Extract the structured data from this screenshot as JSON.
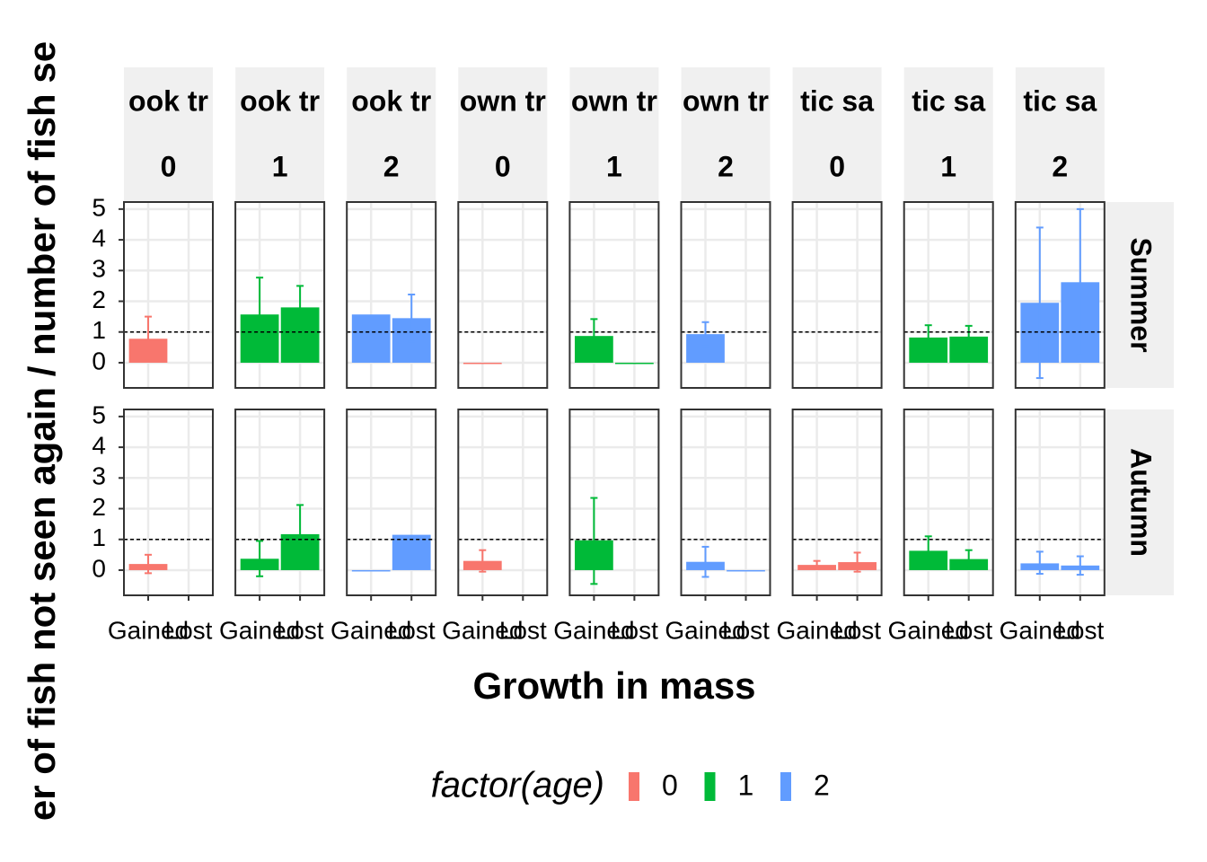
{
  "chart_data": {
    "type": "bar",
    "y_label": "er of fish not seen again / number of fish se",
    "x_label": "Growth in mass",
    "categories": [
      "Gained",
      "Lost"
    ],
    "ylim": [
      -0.82,
      5.23
    ],
    "yticks": [
      0,
      1,
      2,
      3,
      4,
      5
    ],
    "reference_line": 1,
    "grid": true,
    "columns": [
      {
        "label": "ook tr",
        "age": "0"
      },
      {
        "label": "ook tr",
        "age": "1"
      },
      {
        "label": "ook tr",
        "age": "2"
      },
      {
        "label": "own tr",
        "age": "0"
      },
      {
        "label": "own tr",
        "age": "1"
      },
      {
        "label": "own tr",
        "age": "2"
      },
      {
        "label": "tic sa",
        "age": "0"
      },
      {
        "label": "tic sa",
        "age": "1"
      },
      {
        "label": "tic sa",
        "age": "2"
      }
    ],
    "rows": [
      {
        "label": "Summer",
        "panels": [
          {
            "values": [
              0.78,
              null
            ],
            "lower": [
              0.06,
              null
            ],
            "upper": [
              1.5,
              null
            ]
          },
          {
            "values": [
              1.57,
              1.8
            ],
            "lower": [
              0.37,
              1.1
            ],
            "upper": [
              2.77,
              2.5
            ]
          },
          {
            "values": [
              1.57,
              1.45
            ],
            "lower": [
              null,
              0.68
            ],
            "upper": [
              null,
              2.22
            ]
          },
          {
            "values": [
              0,
              null
            ],
            "lower": [
              null,
              null
            ],
            "upper": [
              null,
              null
            ]
          },
          {
            "values": [
              0.87,
              0
            ],
            "lower": [
              0.32,
              null
            ],
            "upper": [
              1.42,
              null
            ]
          },
          {
            "values": [
              0.93,
              null
            ],
            "lower": [
              0.54,
              null
            ],
            "upper": [
              1.32,
              null
            ]
          },
          {
            "values": [
              null,
              null
            ],
            "lower": [
              null,
              null
            ],
            "upper": [
              null,
              null
            ]
          },
          {
            "values": [
              0.82,
              0.85
            ],
            "lower": [
              0.42,
              0.5
            ],
            "upper": [
              1.22,
              1.2
            ]
          },
          {
            "values": [
              1.95,
              2.62
            ],
            "lower": [
              -0.5,
              0.24
            ],
            "upper": [
              4.4,
              5.0
            ]
          }
        ]
      },
      {
        "label": "Autumn",
        "panels": [
          {
            "values": [
              0.2,
              null
            ],
            "lower": [
              -0.1,
              null
            ],
            "upper": [
              0.5,
              null
            ]
          },
          {
            "values": [
              0.37,
              1.17
            ],
            "lower": [
              -0.2,
              0.22
            ],
            "upper": [
              0.95,
              2.12
            ]
          },
          {
            "values": [
              0,
              1.15
            ],
            "lower": [
              null,
              null
            ],
            "upper": [
              null,
              null
            ]
          },
          {
            "values": [
              0.3,
              null
            ],
            "lower": [
              -0.05,
              null
            ],
            "upper": [
              0.65,
              null
            ]
          },
          {
            "values": [
              0.97,
              null
            ],
            "lower": [
              -0.45,
              null
            ],
            "upper": [
              2.35,
              null
            ]
          },
          {
            "values": [
              0.27,
              0
            ],
            "lower": [
              -0.22,
              null
            ],
            "upper": [
              0.76,
              null
            ]
          },
          {
            "values": [
              0.17,
              0.26
            ],
            "lower": [
              0.04,
              -0.05
            ],
            "upper": [
              0.3,
              0.57
            ]
          },
          {
            "values": [
              0.63,
              0.36
            ],
            "lower": [
              0.16,
              0.07
            ],
            "upper": [
              1.1,
              0.65
            ]
          },
          {
            "values": [
              0.22,
              0.15
            ],
            "lower": [
              -0.12,
              -0.15
            ],
            "upper": [
              0.6,
              0.45
            ]
          }
        ]
      }
    ],
    "legend": {
      "title": "factor(age)",
      "items": [
        {
          "name": "0",
          "color": "#F8766D"
        },
        {
          "name": "1",
          "color": "#00BA38"
        },
        {
          "name": "2",
          "color": "#619CFF"
        }
      ]
    }
  }
}
